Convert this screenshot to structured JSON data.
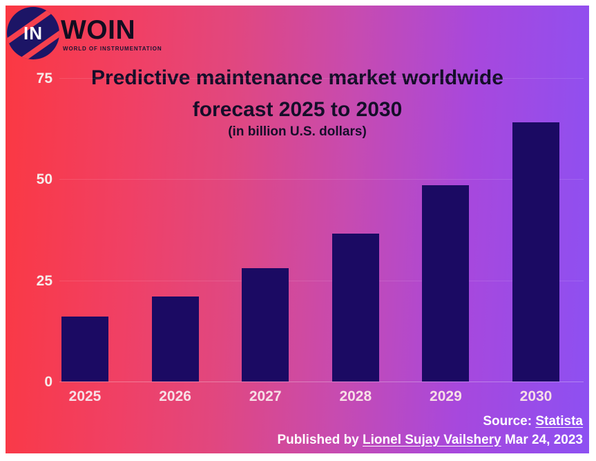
{
  "logo": {
    "badge": "IN",
    "name": "WOIN",
    "tagline": "WORLD OF INSTRUMENTATION",
    "globe_color": "#1c1566",
    "stripe_color": "#f5404e"
  },
  "chart_data": {
    "type": "bar",
    "title_line1": "Predictive maintenance market worldwide",
    "title_line2": "forecast 2025 to 2030",
    "subtitle": "(in billion U.S. dollars)",
    "categories": [
      "2025",
      "2026",
      "2027",
      "2028",
      "2029",
      "2030"
    ],
    "values": [
      16,
      21,
      28,
      36.5,
      48.5,
      64
    ],
    "yticks": [
      0,
      25,
      50,
      75
    ],
    "ylim": [
      0,
      75
    ],
    "xlabel": "",
    "ylabel": "",
    "legend": "none",
    "grid": "faint white horizontal lines at y ticks",
    "bar_color": "#1b0a63",
    "background_gradient": [
      "#fb3842",
      "#8d50f2"
    ]
  },
  "footer": {
    "source_prefix": "Source: ",
    "source_link": "Statista",
    "published_prefix": "Published by ",
    "published_link": "Lionel Sujay Vailshery",
    "published_suffix": " Mar 24, 2023"
  }
}
